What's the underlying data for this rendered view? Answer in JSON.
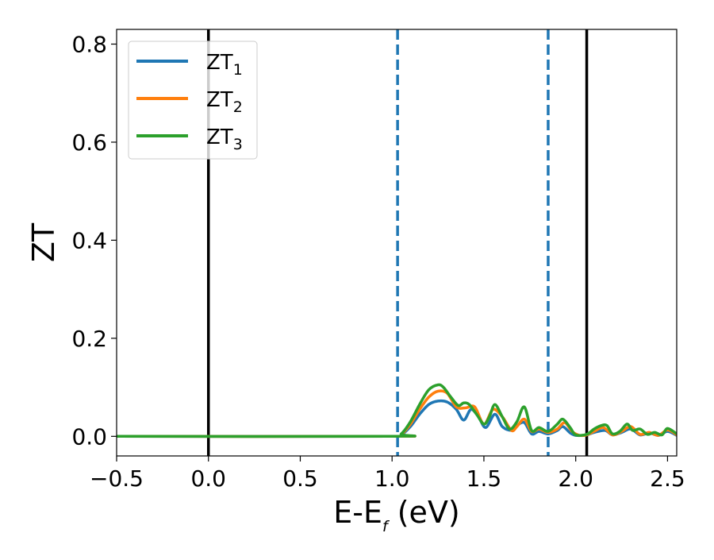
{
  "chart_data": {
    "type": "line",
    "xlabel_main": "E-E",
    "xlabel_sub": "f",
    "xlabel_tail": " (eV)",
    "ylabel": "ZT",
    "xlim": [
      -0.5,
      2.55
    ],
    "ylim": [
      -0.04,
      0.83
    ],
    "xticks": [
      -0.5,
      0.0,
      0.5,
      1.0,
      1.5,
      2.0,
      2.5
    ],
    "xtick_labels": [
      "−0.5",
      "0.0",
      "0.5",
      "1.0",
      "1.5",
      "2.0",
      "2.5"
    ],
    "yticks": [
      0.0,
      0.2,
      0.4,
      0.6,
      0.8
    ],
    "ytick_labels": [
      "0.0",
      "0.2",
      "0.4",
      "0.6",
      "0.8"
    ],
    "legend_placement": "top-left",
    "grid": false,
    "vlines": [
      {
        "x": 0.0,
        "style": "solid",
        "color": "#000000"
      },
      {
        "x": 1.03,
        "style": "dashed",
        "color": "#1f77b4"
      },
      {
        "x": 1.85,
        "style": "dashed",
        "color": "#1f77b4"
      },
      {
        "x": 2.06,
        "style": "solid",
        "color": "#000000"
      }
    ],
    "series": [
      {
        "name": "ZT",
        "name_sub": "1",
        "color": "#1f77b4",
        "x": [
          -0.5,
          1.0,
          1.05,
          1.1,
          1.15,
          1.2,
          1.25,
          1.3,
          1.35,
          1.39,
          1.43,
          1.47,
          1.51,
          1.56,
          1.6,
          1.65,
          1.68,
          1.72,
          1.76,
          1.8,
          1.85,
          1.9,
          1.93,
          1.97,
          2.0,
          2.06,
          2.1,
          2.16,
          2.2,
          2.25,
          2.3,
          2.35,
          2.4,
          2.45,
          2.5,
          2.55
        ],
        "y": [
          0.0,
          0.0,
          0.003,
          0.02,
          0.045,
          0.065,
          0.072,
          0.07,
          0.055,
          0.033,
          0.055,
          0.04,
          0.018,
          0.045,
          0.02,
          0.012,
          0.022,
          0.028,
          0.005,
          0.01,
          0.005,
          0.012,
          0.02,
          0.007,
          0.002,
          0.003,
          0.008,
          0.012,
          0.003,
          0.008,
          0.015,
          0.003,
          0.007,
          0.002,
          0.01,
          0.002
        ]
      },
      {
        "name": "ZT",
        "name_sub": "2",
        "color": "#ff7f0e",
        "x": [
          -0.5,
          1.0,
          1.05,
          1.1,
          1.15,
          1.2,
          1.25,
          1.3,
          1.35,
          1.4,
          1.45,
          1.5,
          1.55,
          1.6,
          1.65,
          1.68,
          1.72,
          1.76,
          1.8,
          1.85,
          1.9,
          1.94,
          1.98,
          2.02,
          2.06,
          2.1,
          2.15,
          2.2,
          2.25,
          2.3,
          2.35,
          2.4,
          2.45,
          2.5,
          2.55
        ],
        "y": [
          0.0,
          0.0,
          0.004,
          0.025,
          0.055,
          0.08,
          0.092,
          0.088,
          0.06,
          0.058,
          0.06,
          0.025,
          0.055,
          0.04,
          0.012,
          0.02,
          0.035,
          0.01,
          0.015,
          0.008,
          0.015,
          0.028,
          0.01,
          0.002,
          0.003,
          0.01,
          0.018,
          0.003,
          0.01,
          0.02,
          0.004,
          0.008,
          0.002,
          0.013,
          0.003
        ]
      },
      {
        "name": "ZT",
        "name_sub": "3",
        "color": "#2ca02c",
        "x": [
          -0.5,
          1.0,
          1.05,
          1.1,
          1.15,
          1.2,
          1.25,
          1.28,
          1.32,
          1.36,
          1.39,
          1.42,
          1.46,
          1.5,
          1.53,
          1.56,
          1.6,
          1.64,
          1.68,
          1.72,
          1.76,
          1.8,
          1.85,
          1.9,
          1.93,
          1.97,
          2.0,
          2.06,
          2.1,
          2.14,
          2.17,
          2.2,
          2.24,
          2.28,
          2.31,
          2.35,
          2.39,
          2.43,
          2.47,
          2.5,
          2.55
        ],
        "y": [
          0.0,
          0.0,
          0.005,
          0.03,
          0.065,
          0.095,
          0.105,
          0.1,
          0.08,
          0.063,
          0.068,
          0.065,
          0.045,
          0.025,
          0.04,
          0.065,
          0.04,
          0.015,
          0.03,
          0.06,
          0.012,
          0.018,
          0.01,
          0.025,
          0.035,
          0.018,
          0.003,
          0.004,
          0.015,
          0.022,
          0.022,
          0.005,
          0.01,
          0.025,
          0.012,
          0.015,
          0.004,
          0.008,
          0.003,
          0.016,
          0.005
        ]
      }
    ]
  }
}
